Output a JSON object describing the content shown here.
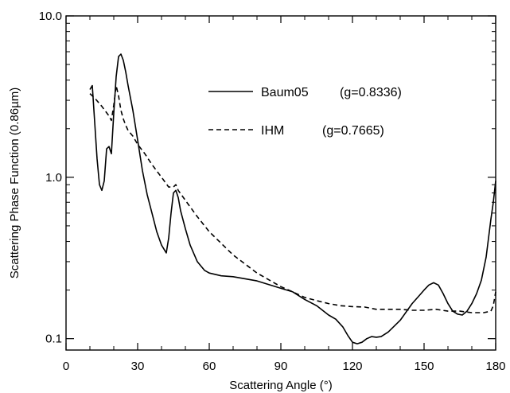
{
  "chart_data": {
    "type": "line",
    "title": "",
    "xlabel": "Scattering Angle (°)",
    "ylabel": "Scattering Phase Function (0.86µm)",
    "xlim": [
      0,
      180
    ],
    "ylim": [
      0.085,
      10.0
    ],
    "yscale": "log",
    "grid": false,
    "legend_position": "top-right",
    "x_ticks": [
      0,
      30,
      60,
      90,
      120,
      150,
      180
    ],
    "x_tick_labels": [
      "0",
      "30",
      "60",
      "90",
      "120",
      "150",
      "180"
    ],
    "y_ticks": [
      0.1,
      1.0,
      10.0
    ],
    "y_tick_labels": [
      "0.1",
      "1.0",
      "10.0"
    ],
    "series": [
      {
        "name": "Baum05",
        "annotation": "(g=0.8336)",
        "dash": "solid",
        "color": "#000000",
        "x": [
          10,
          11,
          12,
          13,
          14,
          15,
          16,
          17,
          18,
          19,
          20,
          21,
          22,
          23,
          24,
          25,
          26,
          28,
          30,
          32,
          34,
          36,
          38,
          40,
          42,
          43,
          44,
          45,
          46,
          47,
          48,
          50,
          52,
          55,
          58,
          60,
          65,
          70,
          80,
          90,
          95,
          100,
          105,
          110,
          113,
          116,
          118,
          120,
          122,
          124,
          126,
          128,
          130,
          132,
          135,
          140,
          145,
          148,
          150,
          152,
          154,
          156,
          158,
          160,
          162,
          164,
          166,
          168,
          170,
          172,
          174,
          176,
          178,
          179,
          180
        ],
        "y": [
          3.5,
          3.7,
          2.2,
          1.3,
          0.9,
          0.83,
          0.95,
          1.5,
          1.55,
          1.4,
          2.5,
          4.2,
          5.6,
          5.8,
          5.3,
          4.5,
          3.7,
          2.6,
          1.7,
          1.1,
          0.78,
          0.6,
          0.46,
          0.38,
          0.34,
          0.42,
          0.6,
          0.8,
          0.83,
          0.75,
          0.62,
          0.48,
          0.38,
          0.3,
          0.265,
          0.255,
          0.245,
          0.242,
          0.228,
          0.205,
          0.195,
          0.175,
          0.16,
          0.14,
          0.132,
          0.118,
          0.105,
          0.095,
          0.093,
          0.095,
          0.1,
          0.103,
          0.102,
          0.103,
          0.11,
          0.13,
          0.165,
          0.185,
          0.2,
          0.215,
          0.222,
          0.215,
          0.19,
          0.165,
          0.148,
          0.142,
          0.14,
          0.148,
          0.165,
          0.19,
          0.23,
          0.32,
          0.55,
          0.7,
          0.95
        ]
      },
      {
        "name": "IHM",
        "annotation": "(g=0.7665)",
        "dash": "dashed",
        "color": "#000000",
        "x": [
          10,
          12,
          15,
          18,
          19,
          20,
          21,
          22,
          23,
          24,
          25,
          26,
          28,
          30,
          33,
          36,
          40,
          43,
          45,
          46,
          47,
          50,
          55,
          60,
          70,
          80,
          90,
          95,
          100,
          105,
          110,
          115,
          120,
          125,
          130,
          135,
          140,
          145,
          150,
          155,
          160,
          165,
          170,
          175,
          178,
          179,
          180
        ],
        "y": [
          3.3,
          3.1,
          2.75,
          2.4,
          2.25,
          2.8,
          3.7,
          3.2,
          2.6,
          2.3,
          2.1,
          1.95,
          1.8,
          1.6,
          1.4,
          1.2,
          1.0,
          0.87,
          0.87,
          0.9,
          0.83,
          0.72,
          0.57,
          0.46,
          0.33,
          0.255,
          0.21,
          0.195,
          0.18,
          0.172,
          0.165,
          0.16,
          0.158,
          0.157,
          0.152,
          0.152,
          0.152,
          0.15,
          0.15,
          0.152,
          0.148,
          0.148,
          0.145,
          0.145,
          0.148,
          0.16,
          0.195
        ]
      }
    ]
  }
}
